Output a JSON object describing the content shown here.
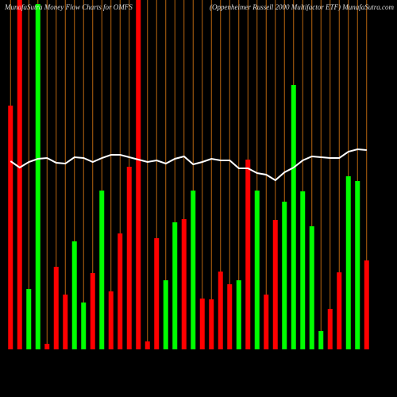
{
  "chart_data": {
    "type": "bar",
    "title": "MunafaSutra  Money Flow  Charts for OMFS",
    "subtitle": "(Oppenheimer Russell 2000  Multifactor ETF) MunafaSutra.com",
    "categories": [
      null,
      null,
      null,
      null,
      null,
      null,
      null,
      null,
      null,
      null,
      null,
      null,
      null,
      null,
      null,
      null,
      null,
      null,
      null,
      null,
      null,
      null,
      null,
      null,
      null,
      null,
      null,
      null,
      null,
      null,
      null,
      null,
      null,
      null,
      null,
      null,
      null,
      null,
      null,
      null
    ],
    "values": [
      307,
      440,
      76,
      435,
      7,
      104,
      69,
      136,
      59,
      96,
      200,
      73,
      146,
      230,
      440,
      10,
      140,
      87,
      160,
      164,
      200,
      64,
      63,
      98,
      82,
      87,
      239,
      200,
      69,
      163,
      186,
      333,
      199,
      155,
      23,
      51,
      97,
      218,
      212,
      112
    ],
    "colors": [
      "#ff0000",
      "#ff0000",
      "#00ff00",
      "#00ff00",
      "#ff0000",
      "#ff0000",
      "#ff0000",
      "#00ff00",
      "#00ff00",
      "#ff0000",
      "#00ff00",
      "#ff0000",
      "#ff0000",
      "#ff0000",
      "#ff0000",
      "#ff0000",
      "#ff0000",
      "#00ff00",
      "#00ff00",
      "#ff0000",
      "#00ff00",
      "#ff0000",
      "#ff0000",
      "#ff0000",
      "#ff0000",
      "#00ff00",
      "#ff0000",
      "#00ff00",
      "#ff0000",
      "#ff0000",
      "#00ff00",
      "#00ff00",
      "#00ff00",
      "#00ff00",
      "#00ff00",
      "#ff0000",
      "#ff0000",
      "#00ff00",
      "#00ff00",
      "#ff0000"
    ],
    "line": {
      "color": "#ffffff",
      "values": [
        237,
        229,
        236,
        240,
        241,
        235,
        234,
        242,
        241,
        236,
        241,
        245,
        245,
        242,
        239,
        236,
        238,
        234,
        240,
        243,
        233,
        236,
        240,
        238,
        238,
        228,
        228,
        222,
        220,
        213,
        223,
        229,
        238,
        243,
        242,
        241,
        241,
        249,
        252,
        251
      ]
    },
    "grid_color": "#b8650f",
    "ylim": [
      0,
      440
    ]
  }
}
